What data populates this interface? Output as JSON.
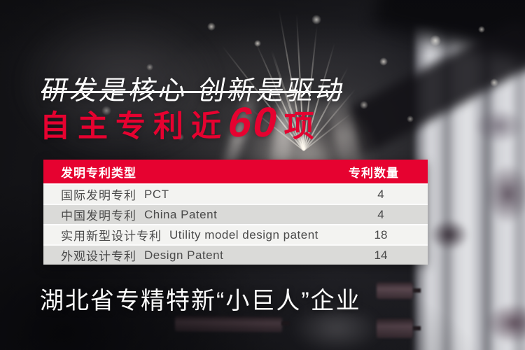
{
  "page": {
    "title": "研发是核心 创新是驱动",
    "headline": {
      "prefix": "自主专利近",
      "number": "60",
      "suffix": "项"
    },
    "footer": "湖北省专精特新“小巨人”企业"
  },
  "table": {
    "header": {
      "type_label": "发明专利类型",
      "count_label": "专利数量"
    },
    "rows": [
      {
        "zh": "国际发明专利",
        "en": "PCT",
        "count": "4"
      },
      {
        "zh": "中国发明专利",
        "en": "China Patent",
        "count": "4"
      },
      {
        "zh": "实用新型设计专利",
        "en": "Utility model design patent",
        "count": "18"
      },
      {
        "zh": "外观设计专利",
        "en": "Design Patent",
        "count": "14"
      }
    ]
  },
  "colors": {
    "accent_red": "#e60230",
    "row_light": "#f3f3f1",
    "row_dark": "#dadad8",
    "row_text": "#4a4a4a",
    "text_white": "#ffffff"
  },
  "chart_data": {
    "type": "table",
    "title": "自主专利近60项",
    "columns": [
      "发明专利类型",
      "专利数量"
    ],
    "rows": [
      [
        "国际发明专利 PCT",
        4
      ],
      [
        "中国发明专利 China Patent",
        4
      ],
      [
        "实用新型设计专利 Utility model design patent",
        18
      ],
      [
        "外观设计专利 Design Patent",
        14
      ]
    ]
  }
}
